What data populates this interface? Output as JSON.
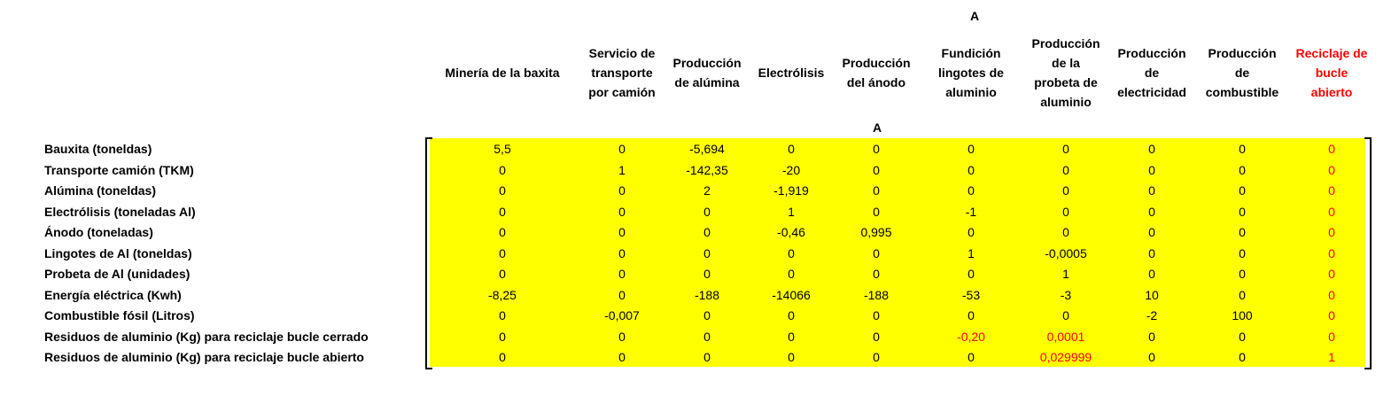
{
  "matrix": {
    "top_title": "A",
    "sub_title": "A",
    "columns": [
      {
        "label": "Minería de la baxita",
        "red": false
      },
      {
        "label": "Servicio de\ntransporte\npor camión",
        "red": false
      },
      {
        "label": "Producción\nde alúmina",
        "red": false
      },
      {
        "label": "Electrólisis",
        "red": false
      },
      {
        "label": "Producción\ndel ánodo",
        "red": false
      },
      {
        "label": "Fundición\nlingotes de\naluminio",
        "red": false
      },
      {
        "label": "Producción\nde la\nprobeta de\naluminio",
        "red": false
      },
      {
        "label": "Producción\nde\nelectricidad",
        "red": false
      },
      {
        "label": "Producción\nde\ncombustible",
        "red": false
      },
      {
        "label": "Reciclaje de\nbucle\nabierto",
        "red": true
      }
    ],
    "rows": [
      {
        "label": "Bauxita (toneldas)",
        "values": [
          "5,5",
          "0",
          "-5,694",
          "0",
          "0",
          "0",
          "0",
          "0",
          "0",
          "0"
        ]
      },
      {
        "label": "Transporte camión (TKM)",
        "values": [
          "0",
          "1",
          "-142,35",
          "-20",
          "0",
          "0",
          "0",
          "0",
          "0",
          "0"
        ]
      },
      {
        "label": "Alúmina (toneldas)",
        "values": [
          "0",
          "0",
          "2",
          "-1,919",
          "0",
          "0",
          "0",
          "0",
          "0",
          "0"
        ]
      },
      {
        "label": "Electrólisis (toneladas Al)",
        "values": [
          "0",
          "0",
          "0",
          "1",
          "0",
          "-1",
          "0",
          "0",
          "0",
          "0"
        ]
      },
      {
        "label": "Ánodo (toneladas)",
        "values": [
          "0",
          "0",
          "0",
          "-0,46",
          "0,995",
          "0",
          "0",
          "0",
          "0",
          "0"
        ]
      },
      {
        "label": "Lingotes de Al (toneldas)",
        "values": [
          "0",
          "0",
          "0",
          "0",
          "0",
          "1",
          "-0,0005",
          "0",
          "0",
          "0"
        ]
      },
      {
        "label": "Probeta de Al (unidades)",
        "values": [
          "0",
          "0",
          "0",
          "0",
          "0",
          "0",
          "1",
          "0",
          "0",
          "0"
        ]
      },
      {
        "label": "Energía eléctrica (Kwh)",
        "values": [
          "-8,25",
          "0",
          "-188",
          "-14066",
          "-188",
          "-53",
          "-3",
          "10",
          "0",
          "0"
        ]
      },
      {
        "label": "Combustible fósil (Litros)",
        "values": [
          "0",
          "-0,007",
          "0",
          "0",
          "0",
          "0",
          "0",
          "-2",
          "100",
          "0"
        ]
      },
      {
        "label": "Residuos de aluminio (Kg) para reciclaje bucle cerrado",
        "values": [
          "0",
          "0",
          "0",
          "0",
          "0",
          "-0,20",
          "0,0001",
          "0",
          "0",
          "0"
        ]
      },
      {
        "label": "Residuos de aluminio (Kg) para reciclaje bucle abierto",
        "values": [
          "0",
          "0",
          "0",
          "0",
          "0",
          "0",
          "0,029999",
          "0",
          "0",
          "1"
        ]
      }
    ],
    "red_cells": [
      [
        9,
        5
      ],
      [
        9,
        6
      ],
      [
        10,
        6
      ]
    ],
    "colors": {
      "highlight": "#ffff00",
      "accent_red": "#ff0000"
    }
  }
}
